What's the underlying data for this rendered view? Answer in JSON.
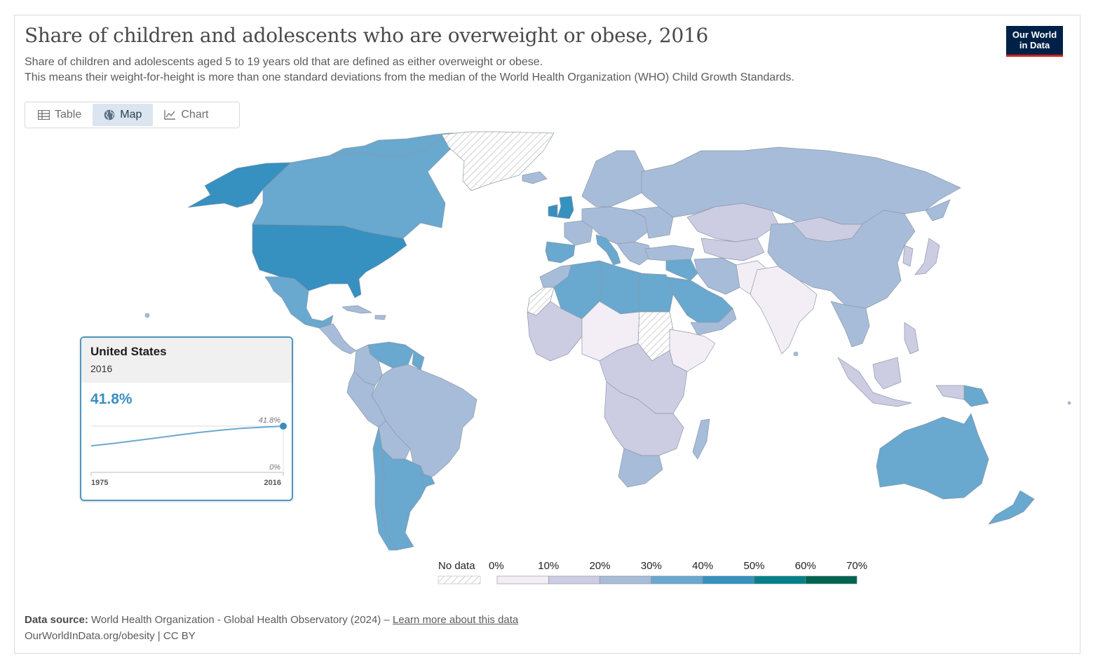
{
  "header": {
    "title": "Share of children and adolescents who are overweight or obese, 2016",
    "subtitle_line1": "Share of children and adolescents aged 5 to 19 years old that are defined as either overweight or obese.",
    "subtitle_line2": "This means their weight-for-height is more than one standard deviations from the median of the World Health Organization (WHO) Child Growth Standards.",
    "logo_line1": "Our World",
    "logo_line2": "in Data"
  },
  "tabs": [
    {
      "label": "Table",
      "icon": "table-icon",
      "active": false
    },
    {
      "label": "Map",
      "icon": "globe-icon",
      "active": true
    },
    {
      "label": "Chart",
      "icon": "line-chart-icon",
      "active": false
    }
  ],
  "tooltip": {
    "country": "United States",
    "year": "2016",
    "value": "41.8%",
    "spark_end_label": "41.8%",
    "spark_zero_label": "0%",
    "x_start": "1975",
    "x_end": "2016",
    "series": [
      24,
      26,
      28.5,
      31,
      33.5,
      36,
      38,
      39.7,
      40.8,
      41.8
    ]
  },
  "legend": {
    "no_data_label": "No data",
    "bins": [
      "0%",
      "10%",
      "20%",
      "30%",
      "40%",
      "50%",
      "60%",
      "70%"
    ],
    "colors": [
      "#f3eef6",
      "#cccce3",
      "#a7bcd9",
      "#69a8cf",
      "#3690c0",
      "#02818a",
      "#016450"
    ],
    "no_data_color": "#e6e6e6"
  },
  "map_colors": {
    "very_low": "#f3eef6",
    "low": "#cccce3",
    "mid": "#a7bcd9",
    "high": "#69a8cf",
    "very_high": "#3690c0",
    "border": "#8c9aa8"
  },
  "footer": {
    "source_label": "Data source:",
    "source_text": "World Health Organization - Global Health Observatory (2024) – ",
    "learn_more": "Learn more about this data",
    "url": "OurWorldInData.org/obesity | CC BY"
  }
}
